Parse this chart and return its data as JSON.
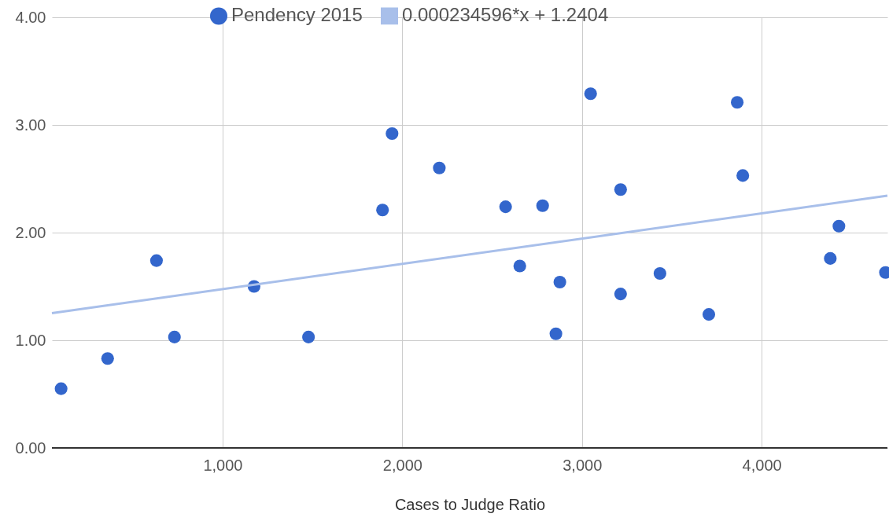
{
  "chart_data": {
    "type": "scatter",
    "xlabel": "Cases to Judge Ratio",
    "xlim": [
      50,
      4700
    ],
    "ylim": [
      0,
      4
    ],
    "xticks": [
      {
        "value": 1000,
        "label": "1,000"
      },
      {
        "value": 2000,
        "label": "2,000"
      },
      {
        "value": 3000,
        "label": "3,000"
      },
      {
        "value": 4000,
        "label": "4,000"
      }
    ],
    "yticks": [
      {
        "value": 0,
        "label": "0.00"
      },
      {
        "value": 1,
        "label": "1.00"
      },
      {
        "value": 2,
        "label": "2.00"
      },
      {
        "value": 3,
        "label": "3.00"
      },
      {
        "value": 4,
        "label": "4.00"
      }
    ],
    "grid": true,
    "legend": "top",
    "series": [
      {
        "name": "Pendency 2015",
        "marker": "circle",
        "color": "#3366cc",
        "x": [
          101,
          360,
          632,
          732,
          1175,
          1478,
          1890,
          1943,
          2206,
          2575,
          2654,
          2781,
          2855,
          2877,
          3048,
          3215,
          3215,
          3434,
          3706,
          3864,
          3895,
          4382,
          4430,
          4689
        ],
        "values": [
          0.55,
          0.83,
          1.74,
          1.03,
          1.5,
          1.03,
          2.21,
          2.92,
          2.6,
          2.24,
          1.69,
          2.25,
          1.06,
          1.54,
          3.29,
          2.4,
          1.43,
          1.62,
          1.24,
          3.21,
          2.53,
          1.76,
          2.06,
          1.63
        ]
      },
      {
        "name": "0.000234596*x + 1.2404",
        "type": "line",
        "marker": "none",
        "color": "#a8bfea",
        "line_style": "solid",
        "x": [
          50,
          4700
        ],
        "values": [
          1.252,
          2.343
        ]
      }
    ]
  }
}
